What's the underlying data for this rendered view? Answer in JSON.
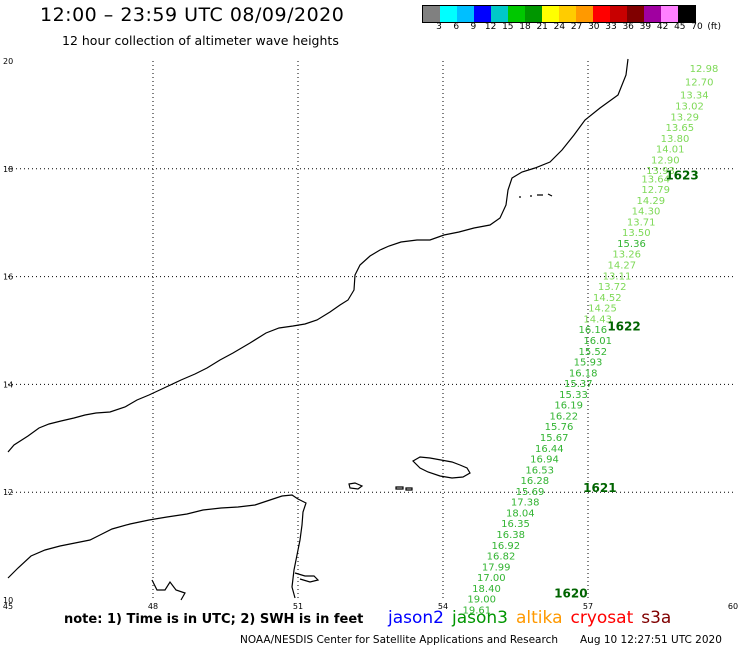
{
  "title": "12:00 – 23:59 UTC 08/09/2020",
  "subtitle": "12 hour collection of altimeter wave heights",
  "legend_colors": [
    "#808080",
    "#00ffff",
    "#00bfff",
    "#0000ff",
    "#00c8c8",
    "#00c800",
    "#009600",
    "#ffff00",
    "#ffcc00",
    "#ff9900",
    "#ff0000",
    "#c80000",
    "#800000",
    "#a000a0",
    "#ff80ff",
    "#000000"
  ],
  "legend_labels": [
    "3",
    "6",
    "9",
    "12",
    "15",
    "18",
    "21",
    "24",
    "27",
    "30",
    "33",
    "36",
    "39",
    "42",
    "45",
    "70",
    "(ft)"
  ],
  "axes": {
    "lon_labels": [
      "45",
      "48",
      "51",
      "54",
      "57",
      "60"
    ],
    "lat_labels": [
      "20",
      "18",
      "16",
      "14",
      "12",
      "10"
    ]
  },
  "note": "note: 1) Time is in UTC; 2) SWH is in feet",
  "satellites": [
    {
      "name": "jason2",
      "color": "#0000ff"
    },
    {
      "name": "jason3",
      "color": "#009600"
    },
    {
      "name": "altika",
      "color": "#ff9900"
    },
    {
      "name": "cryosat",
      "color": "#ff0000"
    },
    {
      "name": "s3a",
      "color": "#800000"
    }
  ],
  "credit": "NOAA/NESDIS Center for Satellite Applications and Research",
  "timestamp": "Aug 10 12:27:51 UTC 2020",
  "track": {
    "times": [
      {
        "label": "1623",
        "lon": 58.6,
        "lat": 17.8
      },
      {
        "label": "1622",
        "lon": 57.4,
        "lat": 15.0
      },
      {
        "label": "1621",
        "lon": 56.9,
        "lat": 12.0
      },
      {
        "label": "1620",
        "lon": 56.3,
        "lat": 10.05
      }
    ],
    "swh": [
      {
        "v": "12.98",
        "lon": 59.4,
        "lat": 19.8,
        "c": "#7ed957"
      },
      {
        "v": "12.70",
        "lon": 59.3,
        "lat": 19.55,
        "c": "#7ed957"
      },
      {
        "v": "13.34",
        "lon": 59.2,
        "lat": 19.3,
        "c": "#7ed957"
      },
      {
        "v": "13.02",
        "lon": 59.1,
        "lat": 19.1,
        "c": "#7ed957"
      },
      {
        "v": "13.29",
        "lon": 59.0,
        "lat": 18.9,
        "c": "#7ed957"
      },
      {
        "v": "13.65",
        "lon": 58.9,
        "lat": 18.7,
        "c": "#7ed957"
      },
      {
        "v": "13.80",
        "lon": 58.8,
        "lat": 18.5,
        "c": "#7ed957"
      },
      {
        "v": "14.01",
        "lon": 58.7,
        "lat": 18.3,
        "c": "#7ed957"
      },
      {
        "v": "12.90",
        "lon": 58.6,
        "lat": 18.1,
        "c": "#7ed957"
      },
      {
        "v": "13.93",
        "lon": 58.5,
        "lat": 17.9,
        "c": "#7ed957"
      },
      {
        "v": "13.64",
        "lon": 58.4,
        "lat": 17.75,
        "c": "#7ed957"
      },
      {
        "v": "12.79",
        "lon": 58.4,
        "lat": 17.55,
        "c": "#7ed957"
      },
      {
        "v": "14.29",
        "lon": 58.3,
        "lat": 17.35,
        "c": "#7ed957"
      },
      {
        "v": "14.30",
        "lon": 58.2,
        "lat": 17.15,
        "c": "#7ed957"
      },
      {
        "v": "13.71",
        "lon": 58.1,
        "lat": 16.95,
        "c": "#7ed957"
      },
      {
        "v": "13.50",
        "lon": 58.0,
        "lat": 16.75,
        "c": "#7ed957"
      },
      {
        "v": "15.36",
        "lon": 57.9,
        "lat": 16.55,
        "c": "#32b432"
      },
      {
        "v": "13.26",
        "lon": 57.8,
        "lat": 16.35,
        "c": "#7ed957"
      },
      {
        "v": "14.27",
        "lon": 57.7,
        "lat": 16.15,
        "c": "#7ed957"
      },
      {
        "v": "13.11",
        "lon": 57.6,
        "lat": 15.95,
        "c": "#7ed957"
      },
      {
        "v": "13.72",
        "lon": 57.5,
        "lat": 15.75,
        "c": "#7ed957"
      },
      {
        "v": "14.52",
        "lon": 57.4,
        "lat": 15.55,
        "c": "#7ed957"
      },
      {
        "v": "14.25",
        "lon": 57.3,
        "lat": 15.35,
        "c": "#7ed957"
      },
      {
        "v": "14.43",
        "lon": 57.2,
        "lat": 15.15,
        "c": "#7ed957"
      },
      {
        "v": "16.16",
        "lon": 57.1,
        "lat": 14.95,
        "c": "#32b432"
      },
      {
        "v": "16.01",
        "lon": 57.2,
        "lat": 14.75,
        "c": "#32b432"
      },
      {
        "v": "15.52",
        "lon": 57.1,
        "lat": 14.55,
        "c": "#32b432"
      },
      {
        "v": "15.93",
        "lon": 57.0,
        "lat": 14.35,
        "c": "#32b432"
      },
      {
        "v": "16.18",
        "lon": 56.9,
        "lat": 14.15,
        "c": "#32b432"
      },
      {
        "v": "15.37",
        "lon": 56.8,
        "lat": 13.95,
        "c": "#32b432"
      },
      {
        "v": "15.33",
        "lon": 56.7,
        "lat": 13.75,
        "c": "#32b432"
      },
      {
        "v": "16.19",
        "lon": 56.6,
        "lat": 13.55,
        "c": "#32b432"
      },
      {
        "v": "16.22",
        "lon": 56.5,
        "lat": 13.35,
        "c": "#32b432"
      },
      {
        "v": "15.76",
        "lon": 56.4,
        "lat": 13.15,
        "c": "#32b432"
      },
      {
        "v": "15.67",
        "lon": 56.3,
        "lat": 12.95,
        "c": "#32b432"
      },
      {
        "v": "16.44",
        "lon": 56.2,
        "lat": 12.75,
        "c": "#32b432"
      },
      {
        "v": "16.94",
        "lon": 56.1,
        "lat": 12.55,
        "c": "#32b432"
      },
      {
        "v": "16.53",
        "lon": 56.0,
        "lat": 12.35,
        "c": "#32b432"
      },
      {
        "v": "16.28",
        "lon": 55.9,
        "lat": 12.15,
        "c": "#32b432"
      },
      {
        "v": "15.69",
        "lon": 55.8,
        "lat": 11.95,
        "c": "#32b432"
      },
      {
        "v": "17.38",
        "lon": 55.7,
        "lat": 11.75,
        "c": "#32b432"
      },
      {
        "v": "18.04",
        "lon": 55.6,
        "lat": 11.55,
        "c": "#32b432"
      },
      {
        "v": "16.35",
        "lon": 55.5,
        "lat": 11.35,
        "c": "#32b432"
      },
      {
        "v": "16.38",
        "lon": 55.4,
        "lat": 11.15,
        "c": "#32b432"
      },
      {
        "v": "16.92",
        "lon": 55.3,
        "lat": 10.95,
        "c": "#32b432"
      },
      {
        "v": "16.82",
        "lon": 55.2,
        "lat": 10.75,
        "c": "#32b432"
      },
      {
        "v": "17.99",
        "lon": 55.1,
        "lat": 10.55,
        "c": "#32b432"
      },
      {
        "v": "17.00",
        "lon": 55.0,
        "lat": 10.35,
        "c": "#32b432"
      },
      {
        "v": "18.40",
        "lon": 54.9,
        "lat": 10.15,
        "c": "#32b432"
      },
      {
        "v": "19.00",
        "lon": 54.8,
        "lat": 9.95,
        "c": "#32b432"
      },
      {
        "v": "19.61",
        "lon": 54.7,
        "lat": 9.75,
        "c": "#32b432"
      }
    ]
  }
}
